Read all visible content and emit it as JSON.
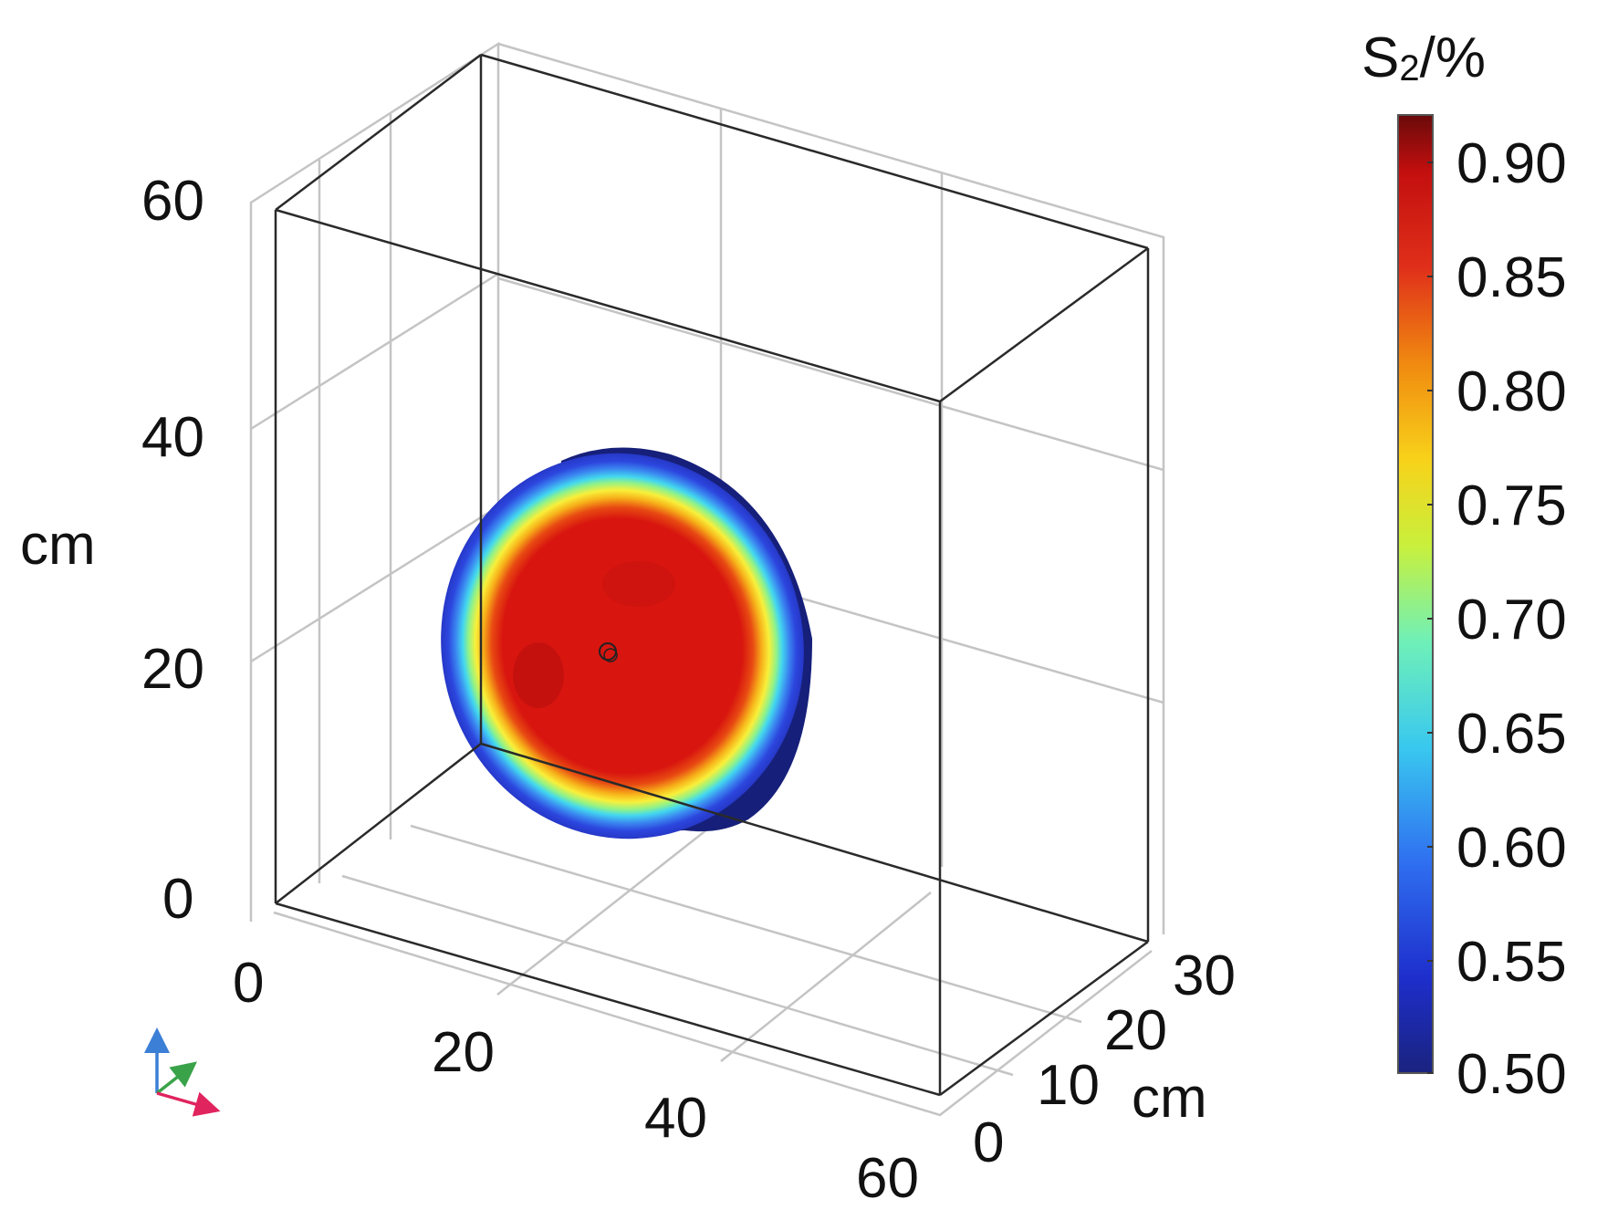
{
  "figure": {
    "z_axis": {
      "label": "cm",
      "ticks": [
        "0",
        "20",
        "40",
        "60"
      ]
    },
    "x_axis": {
      "ticks": [
        "0",
        "20",
        "40",
        "60"
      ]
    },
    "y_axis": {
      "label": "cm",
      "ticks": [
        "0",
        "10",
        "20",
        "30"
      ]
    },
    "colorbar": {
      "title_main": "S",
      "title_sub": "2",
      "title_unit": "/%",
      "range": [
        0.5,
        0.92
      ],
      "ticks": [
        "0.90",
        "0.85",
        "0.80",
        "0.75",
        "0.70",
        "0.65",
        "0.60",
        "0.55",
        "0.50"
      ],
      "colormap": "jet",
      "colors": [
        "#1a237e",
        "#1e2ecc",
        "#2f6ff0",
        "#39c8ef",
        "#6ff0b8",
        "#c8f03c",
        "#f8d21a",
        "#f08a10",
        "#e0301a",
        "#c40f0f",
        "#6a0a0a"
      ]
    },
    "object": {
      "name": "disk",
      "face_center_color": "#d8150f",
      "rim_color": "#16207a"
    },
    "triad_colors": {
      "x": "#e0245e",
      "y": "#3aa34a",
      "z": "#3b7fd6"
    }
  }
}
